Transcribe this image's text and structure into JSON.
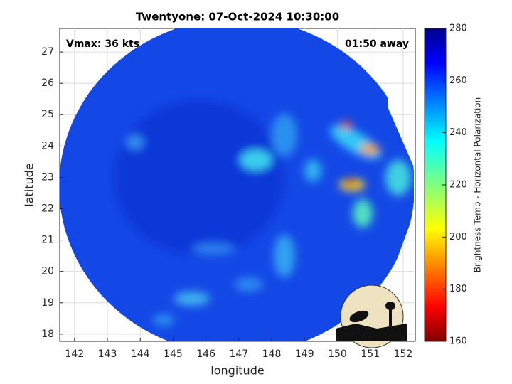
{
  "map": {
    "title": "Twentyone: 07-Oct-2024 10:30:00",
    "annotation_left": "Vmax: 36 kts",
    "annotation_right": "01:50 away",
    "x_axis": {
      "label": "longitude",
      "lim": [
        141.55,
        152.37
      ],
      "ticks": [
        142,
        143,
        144,
        145,
        146,
        147,
        148,
        149,
        150,
        151,
        152
      ]
    },
    "y_axis": {
      "label": "latitude",
      "lim": [
        17.77,
        27.75
      ],
      "ticks": [
        18,
        19,
        20,
        21,
        22,
        23,
        24,
        25,
        26,
        27
      ]
    },
    "colorbar": {
      "label": "Brightness Temp - Horizontal Polarization",
      "lim": [
        160,
        280
      ],
      "ticks": [
        160,
        180,
        200,
        220,
        240,
        260,
        280
      ]
    },
    "logo": "CIMSS"
  }
}
